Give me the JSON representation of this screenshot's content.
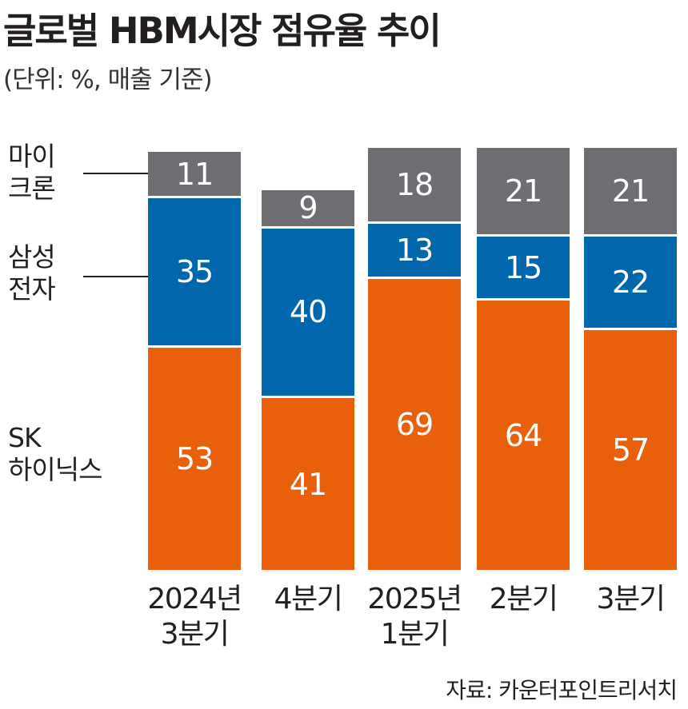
{
  "chart_data": {
    "type": "bar",
    "stacked": true,
    "title": "글로벌 HBM시장 점유율 추이",
    "subtitle": "(단위: %, 매출 기준)",
    "categories": [
      "2024년\n3분기",
      "4분기",
      "2025년\n1분기",
      "2분기",
      "3분기"
    ],
    "series": [
      {
        "name": "SK\n하이닉스",
        "color": "#e8610a",
        "values": [
          53,
          41,
          69,
          64,
          57
        ]
      },
      {
        "name": "삼성\n전자",
        "color": "#0067ac",
        "values": [
          35,
          40,
          13,
          15,
          22
        ]
      },
      {
        "name": "마이\n크론",
        "color": "#6d6e71",
        "values": [
          11,
          9,
          18,
          21,
          21
        ]
      }
    ],
    "ylim": [
      0,
      100
    ],
    "grid": false,
    "legend": "left",
    "source": "자료: 카운터포인트리서치"
  }
}
